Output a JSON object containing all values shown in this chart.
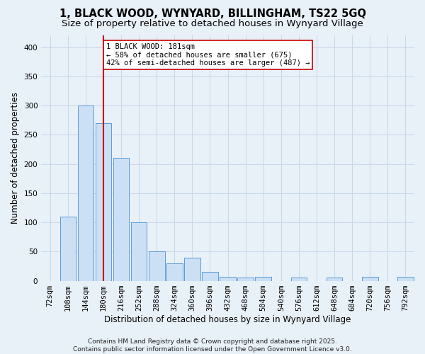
{
  "title": "1, BLACK WOOD, WYNYARD, BILLINGHAM, TS22 5GQ",
  "subtitle": "Size of property relative to detached houses in Wynyard Village",
  "xlabel": "Distribution of detached houses by size in Wynyard Village",
  "ylabel": "Number of detached properties",
  "footer": "Contains HM Land Registry data © Crown copyright and database right 2025.\nContains public sector information licensed under the Open Government Licence v3.0.",
  "categories": [
    "72sqm",
    "108sqm",
    "144sqm",
    "180sqm",
    "216sqm",
    "252sqm",
    "288sqm",
    "324sqm",
    "360sqm",
    "396sqm",
    "432sqm",
    "468sqm",
    "504sqm",
    "540sqm",
    "576sqm",
    "612sqm",
    "648sqm",
    "684sqm",
    "720sqm",
    "756sqm",
    "792sqm"
  ],
  "values": [
    0,
    110,
    300,
    270,
    210,
    100,
    50,
    30,
    40,
    15,
    7,
    5,
    7,
    0,
    5,
    0,
    5,
    0,
    7,
    0,
    7
  ],
  "bar_color": "#cce0f5",
  "bar_edge_color": "#5b9bd5",
  "vline_x_index": 3,
  "vline_color": "#cc0000",
  "annotation_text": "1 BLACK WOOD: 181sqm\n← 58% of detached houses are smaller (675)\n42% of semi-detached houses are larger (487) →",
  "annotation_box_color": "#ffffff",
  "annotation_box_edge": "#cc0000",
  "grid_color": "#c8d8e8",
  "background_color": "#e8f0f8",
  "ylim": [
    0,
    420
  ],
  "yticks": [
    0,
    50,
    100,
    150,
    200,
    250,
    300,
    350,
    400
  ],
  "title_fontsize": 10.5,
  "subtitle_fontsize": 9.5,
  "axis_label_fontsize": 8.5,
  "tick_fontsize": 7.5,
  "annotation_fontsize": 7.5,
  "footer_fontsize": 6.5
}
